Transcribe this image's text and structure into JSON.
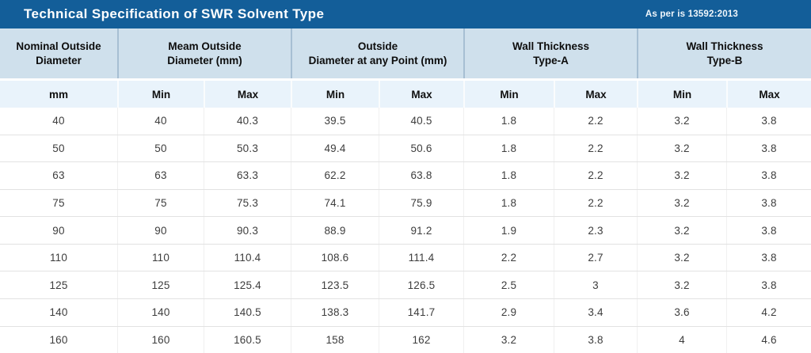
{
  "header": {
    "title": "Technical Specification of SWR Solvent Type",
    "reference": "As per is 13592:2013"
  },
  "colors": {
    "title_bar_bg": "#135E99",
    "title_text": "#FFFFFF",
    "group_header_bg": "#CFE0EC",
    "group_divider": "#A7BFD3",
    "subheader_bg": "#E9F3FB",
    "row_line": "#E2E2E2",
    "data_text": "#3D3D3D"
  },
  "chart_data": {
    "type": "table",
    "title": "Technical Specification of SWR Solvent Type",
    "note": "As per is 13592:2013",
    "column_groups": [
      {
        "label": "Nominal Outside\nDiameter",
        "span": 1
      },
      {
        "label": "Meam Outside\nDiameter (mm)",
        "span": 2
      },
      {
        "label": "Outside\nDiameter at any Point (mm)",
        "span": 2
      },
      {
        "label": "Wall Thickness\nType-A",
        "span": 2
      },
      {
        "label": "Wall Thickness\nType-B",
        "span": 2
      }
    ],
    "sub_headers": [
      "mm",
      "Min",
      "Max",
      "Min",
      "Max",
      "Min",
      "Max",
      "Min",
      "Max"
    ],
    "rows": [
      [
        40,
        40,
        40.3,
        39.5,
        40.5,
        1.8,
        2.2,
        3.2,
        3.8
      ],
      [
        50,
        50,
        50.3,
        49.4,
        50.6,
        1.8,
        2.2,
        3.2,
        3.8
      ],
      [
        63,
        63,
        63.3,
        62.2,
        63.8,
        1.8,
        2.2,
        3.2,
        3.8
      ],
      [
        75,
        75,
        75.3,
        74.1,
        75.9,
        1.8,
        2.2,
        3.2,
        3.8
      ],
      [
        90,
        90,
        90.3,
        88.9,
        91.2,
        1.9,
        2.3,
        3.2,
        3.8
      ],
      [
        110,
        110,
        110.4,
        108.6,
        111.4,
        2.2,
        2.7,
        3.2,
        3.8
      ],
      [
        125,
        125,
        125.4,
        123.5,
        126.5,
        2.5,
        3,
        3.2,
        3.8
      ],
      [
        140,
        140,
        140.5,
        138.3,
        141.7,
        2.9,
        3.4,
        3.6,
        4.2
      ],
      [
        160,
        160,
        160.5,
        158,
        162,
        3.2,
        3.8,
        4,
        4.6
      ]
    ]
  }
}
